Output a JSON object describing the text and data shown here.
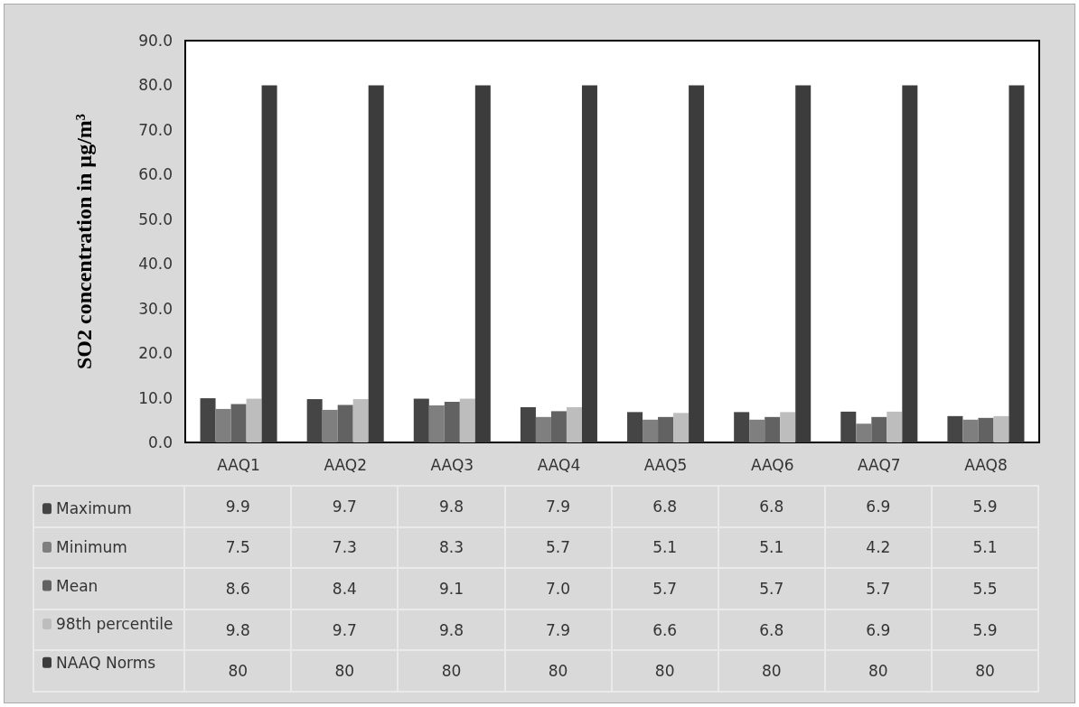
{
  "chart_data": {
    "type": "bar",
    "ylabel": "SO2 concentration in µg/m³",
    "categories": [
      "AAQ1",
      "AAQ2",
      "AAQ3",
      "AAQ4",
      "AAQ5",
      "AAQ6",
      "AAQ7",
      "AAQ8"
    ],
    "series": [
      {
        "name": "Maximum",
        "color": "#454545",
        "values": [
          9.9,
          9.7,
          9.8,
          7.9,
          6.8,
          6.8,
          6.9,
          5.9
        ],
        "value_labels": [
          "9.9",
          "9.7",
          "9.8",
          "7.9",
          "6.8",
          "6.8",
          "6.9",
          "5.9"
        ]
      },
      {
        "name": "Minimum",
        "color": "#7f7f7f",
        "values": [
          7.5,
          7.3,
          8.3,
          5.7,
          5.1,
          5.1,
          4.2,
          5.1
        ],
        "value_labels": [
          "7.5",
          "7.3",
          "8.3",
          "5.7",
          "5.1",
          "5.1",
          "4.2",
          "5.1"
        ]
      },
      {
        "name": "Mean",
        "color": "#626262",
        "values": [
          8.6,
          8.4,
          9.1,
          7.0,
          5.7,
          5.7,
          5.7,
          5.5
        ],
        "value_labels": [
          "8.6",
          "8.4",
          "9.1",
          "7.0",
          "5.7",
          "5.7",
          "5.7",
          "5.5"
        ]
      },
      {
        "name": "98th percentile",
        "color": "#bdbdbd",
        "values": [
          9.8,
          9.7,
          9.8,
          7.9,
          6.6,
          6.8,
          6.9,
          5.9
        ],
        "value_labels": [
          "9.8",
          "9.7",
          "9.8",
          "7.9",
          "6.6",
          "6.8",
          "6.9",
          "5.9"
        ]
      },
      {
        "name": "NAAQ Norms",
        "color": "#3c3c3c",
        "values": [
          80,
          80,
          80,
          80,
          80,
          80,
          80,
          80
        ],
        "value_labels": [
          "80",
          "80",
          "80",
          "80",
          "80",
          "80",
          "80",
          "80"
        ]
      }
    ],
    "ylim": [
      0,
      90
    ],
    "yticks": [
      {
        "value": 0,
        "label": "0.0"
      },
      {
        "value": 10,
        "label": "10.0"
      },
      {
        "value": 20,
        "label": "20.0"
      },
      {
        "value": 30,
        "label": "30.0"
      },
      {
        "value": 40,
        "label": "40.0"
      },
      {
        "value": 50,
        "label": "50.0"
      },
      {
        "value": 60,
        "label": "60.0"
      },
      {
        "value": 70,
        "label": "70.0"
      },
      {
        "value": 80,
        "label": "80.0"
      },
      {
        "value": 90,
        "label": "90.0"
      }
    ],
    "grid": false,
    "legend": "bottom left"
  }
}
